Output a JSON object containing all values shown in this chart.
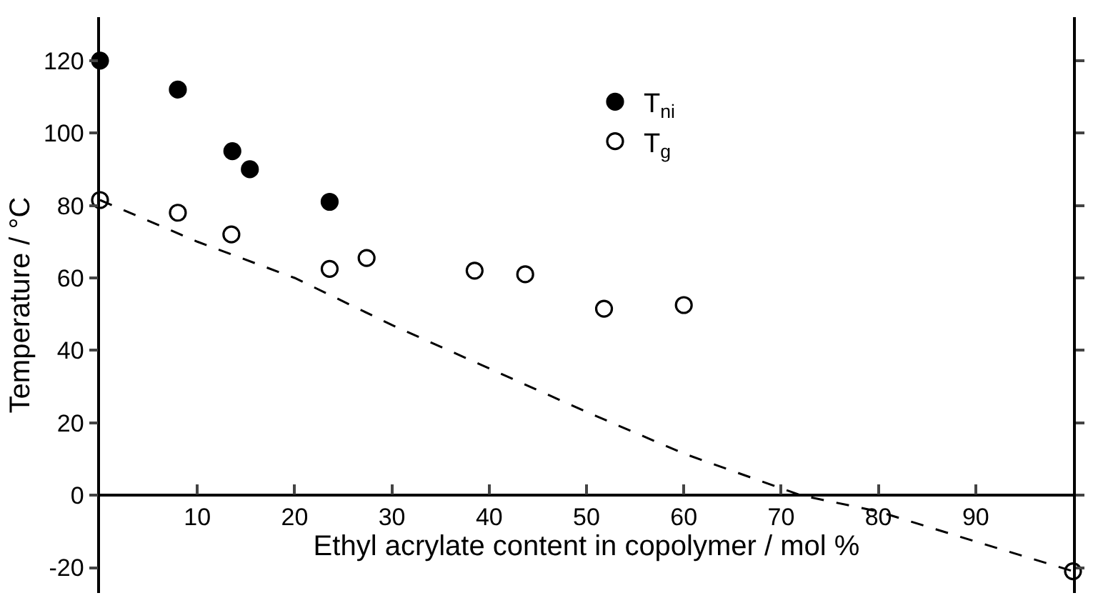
{
  "chart_data": {
    "type": "scatter",
    "xlabel": "Ethyl acrylate content in copolymer / mol %",
    "ylabel": "Temperature / °C",
    "xlim": [
      0,
      100
    ],
    "ylim": [
      -27,
      132
    ],
    "xticks": [
      {
        "value": 0,
        "label": null
      },
      10,
      20,
      30,
      40,
      50,
      60,
      70,
      80,
      90,
      {
        "value": 100,
        "label": null
      }
    ],
    "yticks": [
      -20,
      0,
      20,
      40,
      60,
      80,
      100,
      120
    ],
    "legend": "top",
    "marker": "circle",
    "series": [
      {
        "name": "T$_{ni}$",
        "color": "#000000",
        "x": [
          0,
          8,
          13.6,
          15.4,
          23.6
        ],
        "values": [
          120,
          112,
          95,
          90,
          81
        ]
      },
      {
        "name": "T$_{g}$",
        "color": "#ffffff",
        "x": [
          0,
          8,
          13.5,
          23.6,
          27.4,
          38.5,
          43.7,
          51.8,
          60,
          100
        ],
        "values": [
          81.5,
          78,
          72,
          62.5,
          65.5,
          62,
          61,
          51.5,
          52.5,
          -21
        ]
      },
      {
        "type": "line",
        "color": "#000000",
        "marker": "none",
        "line_style": "dashed",
        "x": [
          0,
          10,
          20,
          30,
          40,
          50,
          60,
          72,
          80,
          90,
          100
        ],
        "values": [
          81.5,
          70,
          60,
          47,
          35,
          23,
          11.5,
          0,
          -4.5,
          -12.8,
          -21
        ]
      }
    ]
  }
}
